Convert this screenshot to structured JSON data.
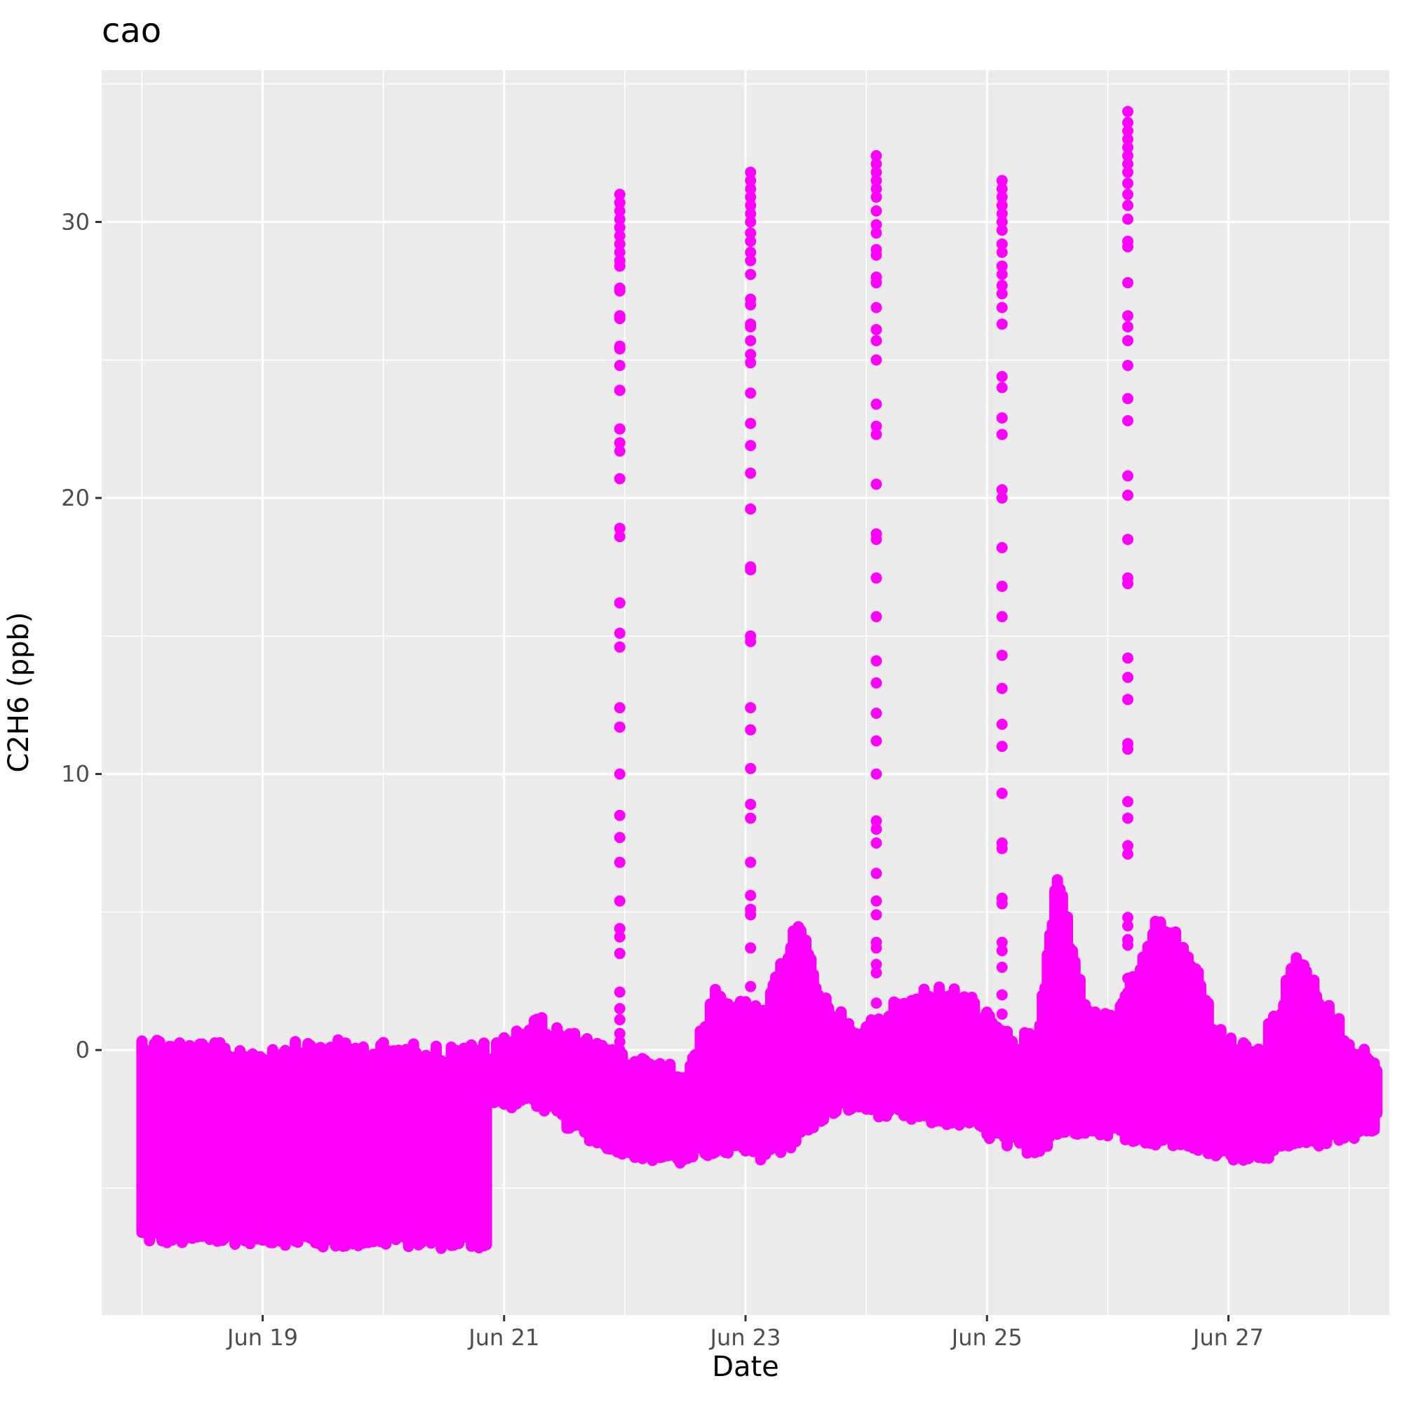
{
  "chart_data": {
    "type": "scatter",
    "title": "cao",
    "xlabel": "Date",
    "ylabel": "C2H6 (ppb)",
    "x_axis": {
      "type": "date",
      "range": [
        "2023-06-17T16:00",
        "2023-06-28T08:00"
      ],
      "major_ticks": [
        "2023-06-19",
        "2023-06-21",
        "2023-06-23",
        "2023-06-25",
        "2023-06-27"
      ],
      "tick_labels": [
        "Jun 19",
        "Jun 21",
        "Jun 23",
        "Jun 25",
        "Jun 27"
      ],
      "minor_ticks": [
        "2023-06-18",
        "2023-06-20",
        "2023-06-22",
        "2023-06-24",
        "2023-06-26",
        "2023-06-28"
      ]
    },
    "y_axis": {
      "range": [
        -9.6,
        35.5
      ],
      "major_ticks": [
        0,
        10,
        20,
        30
      ],
      "tick_labels": [
        "0",
        "10",
        "20",
        "30"
      ],
      "minor_ticks": [
        -5,
        5,
        15,
        25,
        35
      ]
    },
    "grid": true,
    "panel_background": "#EBEBEB",
    "point_color": "#FF00FF",
    "series": [
      {
        "baseline_bands": [
          {
            "x": [
              "2023-06-18T00:00",
              "2023-06-18T12:00",
              "2023-06-19T00:00",
              "2023-06-19T12:00",
              "2023-06-20T00:00",
              "2023-06-20T12:00",
              "2023-06-20T21:00"
            ],
            "lo": [
              -7,
              -7.1,
              -7,
              -7.2,
              -7.1,
              -7.2,
              -7.2
            ],
            "hi": [
              0.6,
              0.3,
              0.2,
              0.4,
              0.3,
              0.2,
              0.3
            ]
          },
          {
            "x": [
              "2023-06-20T22:00",
              "2023-06-21T06:00",
              "2023-06-21T12:00",
              "2023-06-21T20:00",
              "2023-06-22T04:00",
              "2023-06-22T12:00",
              "2023-06-22T18:00"
            ],
            "lo": [
              -2.2,
              -2,
              -2.8,
              -3.6,
              -4,
              -4.2,
              -3.8
            ],
            "hi": [
              0.3,
              1.3,
              0.8,
              0.2,
              -0.3,
              -0.6,
              2.2
            ]
          },
          {
            "x": [
              "2023-06-22T18:00",
              "2023-06-23T04:00",
              "2023-06-23T10:00",
              "2023-06-23T16:00",
              "2023-06-23T22:00",
              "2023-06-24T04:00",
              "2023-06-24T12:00",
              "2023-06-24T20:00"
            ],
            "lo": [
              -3.8,
              -4,
              -3.5,
              -2.5,
              -2.2,
              -2.5,
              -2.7,
              -2.8
            ],
            "hi": [
              2.2,
              1.5,
              5,
              2,
              0.8,
              1.6,
              2.4,
              2.2
            ]
          },
          {
            "x": [
              "2023-06-24T20:00",
              "2023-06-25T04:00",
              "2023-06-25T10:00",
              "2023-06-25T14:00",
              "2023-06-25T20:00",
              "2023-06-26T02:00",
              "2023-06-26T10:00",
              "2023-06-26T16:00"
            ],
            "lo": [
              -2.8,
              -3.6,
              -3.8,
              -3.2,
              -3,
              -3.2,
              -3.5,
              -3.6
            ],
            "hi": [
              2.2,
              0.7,
              0.6,
              6.7,
              1.5,
              1.4,
              4.9,
              3.9
            ]
          },
          {
            "x": [
              "2023-06-26T16:00",
              "2023-06-26T22:00",
              "2023-06-27T06:00",
              "2023-06-27T14:00",
              "2023-06-27T20:00",
              "2023-06-28T02:00",
              "2023-06-28T06:00"
            ],
            "lo": [
              -3.6,
              -4,
              -4,
              -3.7,
              -3.4,
              -3.2,
              -2.8
            ],
            "hi": [
              3.9,
              0.8,
              0.1,
              3.7,
              1.7,
              0.1,
              0
            ]
          }
        ],
        "spikes": [
          {
            "x": "2023-06-21T23:00",
            "values": [
              -0.4,
              0,
              0.3,
              0.6,
              1.1,
              1.5,
              2.1,
              3.5,
              4.1,
              4.4,
              5.4,
              6.8,
              7.7,
              8.5,
              10,
              11.7,
              12.4,
              14.6,
              15.1,
              16.2,
              18.6,
              18.9,
              20.7,
              21.7,
              22,
              22.5,
              23.9,
              24.8,
              25.4,
              25.5,
              26.5,
              26.6,
              27.5,
              27.6,
              28.4,
              28.6,
              28.9,
              29.2,
              29.5,
              29.8,
              30.1,
              30.4,
              30.7,
              31
            ]
          },
          {
            "x": "2023-06-23T01:00",
            "values": [
              1,
              1.5,
              2.3,
              3.7,
              4.9,
              5.1,
              5.6,
              6.8,
              8.4,
              8.9,
              10.2,
              11.6,
              12.4,
              14.8,
              15,
              17.4,
              17.5,
              19.6,
              20.9,
              21.9,
              22.7,
              23.8,
              24.9,
              25.2,
              25.7,
              26.2,
              26.3,
              27,
              27.2,
              28.1,
              28.6,
              28.9,
              29.3,
              29.6,
              30,
              30.3,
              30.6,
              30.9,
              31.2,
              31.5,
              31.8
            ]
          },
          {
            "x": "2023-06-24T02:00",
            "values": [
              1.7,
              2.8,
              3.1,
              3.7,
              3.9,
              4.9,
              5.4,
              6.4,
              7.5,
              8,
              8.3,
              10,
              11.2,
              12.2,
              13.3,
              14.1,
              15.7,
              17.1,
              18.5,
              18.7,
              20.5,
              22.3,
              22.6,
              23.4,
              25,
              25.7,
              26.1,
              26.9,
              27.8,
              28,
              28.8,
              29,
              29.6,
              29.9,
              30.4,
              30.9,
              31.2,
              31.5,
              31.8,
              32.1,
              32.4
            ]
          },
          {
            "x": "2023-06-25T03:00",
            "values": [
              0.5,
              1.3,
              2,
              3,
              3.6,
              3.9,
              5.3,
              5.5,
              7.3,
              7.5,
              9.3,
              11,
              11.8,
              13.1,
              14.3,
              15.7,
              16.8,
              18.2,
              20,
              20.3,
              22.3,
              22.9,
              24,
              24.4,
              26.3,
              26.9,
              27.4,
              27.7,
              28.1,
              28.4,
              28.9,
              29.2,
              29.7,
              30,
              30.3,
              30.6,
              30.9,
              31.2,
              31.5
            ]
          },
          {
            "x": "2023-06-26T04:00",
            "values": [
              1.8,
              2.6,
              3.8,
              4,
              4.5,
              4.8,
              7.1,
              7.4,
              8.4,
              9,
              10.9,
              11.1,
              12.7,
              13.5,
              14.2,
              16.9,
              17.1,
              18.5,
              20.1,
              20.8,
              22.8,
              23.6,
              24.8,
              25.7,
              26.2,
              26.6,
              27.8,
              29.1,
              29.3,
              30.1,
              30.6,
              31,
              31.4,
              31.8,
              32.1,
              32.4,
              32.7,
              33,
              33.3,
              33.6,
              34
            ]
          }
        ]
      }
    ]
  }
}
